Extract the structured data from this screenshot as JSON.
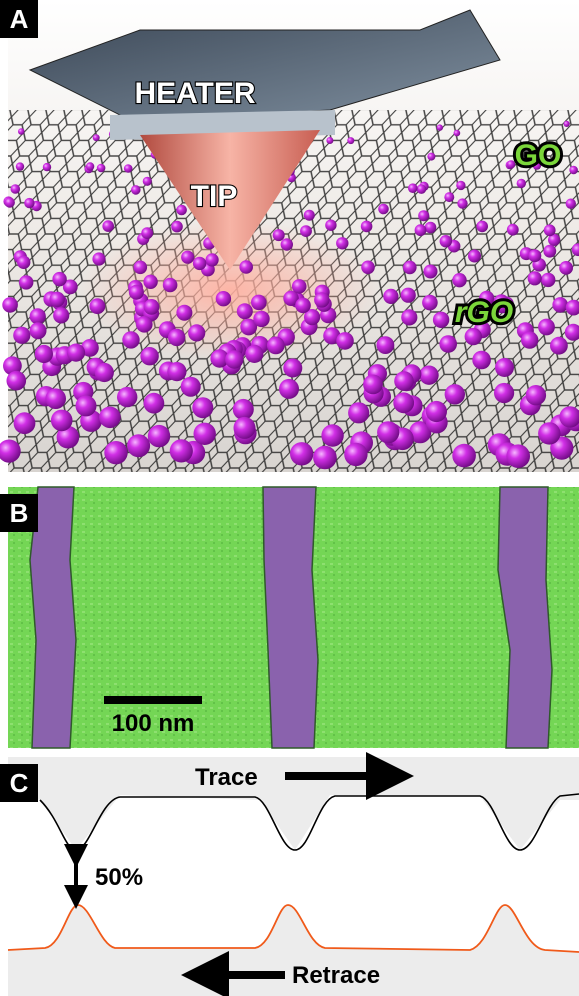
{
  "panel_a": {
    "label": "A",
    "heater": "HEATER",
    "tip": "TIP",
    "go": "GO",
    "rgo": "rGO"
  },
  "panel_b": {
    "label": "B",
    "scale_bar": "100 nm"
  },
  "panel_c": {
    "label": "C",
    "trace": "Trace",
    "retrace": "Retrace",
    "contrast": "50%"
  }
}
